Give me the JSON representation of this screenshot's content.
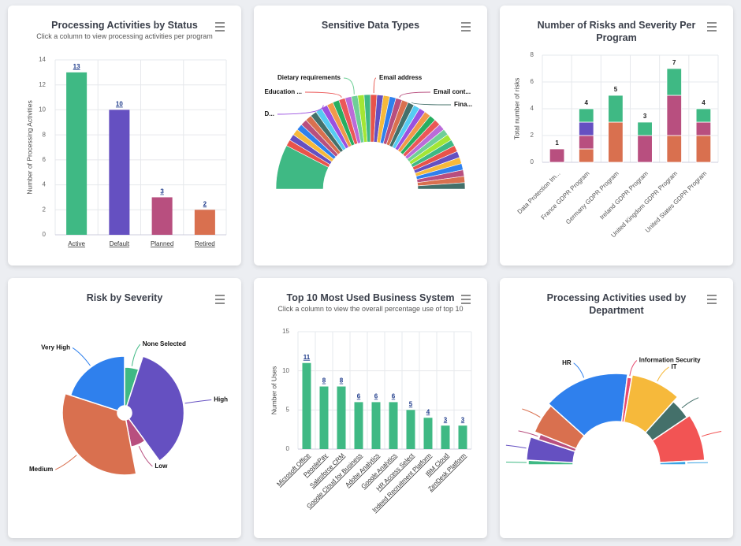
{
  "chart_data": [
    {
      "type": "bar",
      "title": "Processing Activities by Status",
      "subtitle": "Click a column to view processing activities per program",
      "y_label": "Number of Processing Activities",
      "categories": [
        "Active",
        "Default",
        "Planned",
        "Retired"
      ],
      "values": [
        13,
        10,
        3,
        2
      ],
      "colors": [
        "#3fb984",
        "#6550c1",
        "#b84f7f",
        "#d9704f"
      ],
      "data_labels": true,
      "ylim": [
        0,
        14
      ],
      "yticks": [
        0,
        2,
        4,
        6,
        8,
        10,
        12,
        14
      ],
      "grid": true
    },
    {
      "type": "pie",
      "title": "Sensitive Data Types",
      "semicircle": true,
      "categories": [
        null,
        null,
        null,
        null,
        null,
        null,
        null,
        null,
        null,
        "D...",
        null,
        null,
        "Education ...",
        null,
        "Dietary requirements",
        null,
        null,
        "Email address",
        null,
        null,
        null,
        "Email cont...",
        null,
        "Fina...",
        null,
        null,
        null,
        null,
        null,
        null,
        null,
        null,
        null,
        null,
        null,
        null,
        null,
        null,
        null,
        null
      ],
      "values": [
        7,
        1,
        1,
        1,
        1,
        1,
        1,
        1,
        1,
        1,
        1,
        1,
        1,
        1,
        1,
        1,
        1,
        1,
        1,
        1,
        1,
        1,
        1,
        1,
        1,
        1,
        1,
        1,
        1,
        1,
        1,
        1,
        1,
        1,
        1,
        1,
        1,
        1,
        1,
        1
      ],
      "colors": [
        "#3fb984",
        "#e8534a",
        "#6550c1",
        "#f6b93b",
        "#2f80ed",
        "#b84f7f",
        "#d9704f",
        "#44706a",
        "#56ccf2",
        "#9b51e0",
        "#f2994a",
        "#27ae60",
        "#eb5757",
        "#bb6bd9",
        "#6fcf97",
        "#a3e635"
      ]
    },
    {
      "type": "bar",
      "title": "Number of Risks and Severity Per Program",
      "y_label": "Total number of risks",
      "categories": [
        "Data Protection Im...",
        "France GDPR Program",
        "Germany GDPR Program",
        "Ireland GDPR Program",
        "United Kingdom GDPR Program",
        "United States GDPR Program"
      ],
      "series": [
        {
          "color": "#d9704f",
          "values": [
            0,
            1,
            3,
            0,
            2,
            2
          ]
        },
        {
          "color": "#b84f7f",
          "values": [
            1,
            1,
            0,
            2,
            3,
            1
          ]
        },
        {
          "color": "#6550c1",
          "values": [
            0,
            1,
            0,
            0,
            0,
            0
          ]
        },
        {
          "color": "#3fb984",
          "values": [
            0,
            1,
            2,
            1,
            2,
            1
          ]
        }
      ],
      "stack_totals": [
        1,
        4,
        5,
        3,
        7,
        4
      ],
      "ylim": [
        0,
        8
      ],
      "yticks": [
        0,
        2,
        4,
        6,
        8
      ],
      "grid": true
    },
    {
      "type": "pie",
      "title": "Risk by Severity",
      "categories": [
        "None Selected",
        "High",
        "Low",
        "Medium",
        "Very High"
      ],
      "values": [
        5,
        35,
        7,
        33,
        20
      ],
      "z": [
        4,
        6.5,
        2,
        7,
        6
      ],
      "colors": [
        "#3fb984",
        "#6550c1",
        "#b84f7f",
        "#d9704f",
        "#2f80ed"
      ]
    },
    {
      "type": "bar",
      "title": "Top 10 Most Used Business System",
      "subtitle": "Click a column to view the overall percentage use of top 10",
      "y_label": "Number of Uses",
      "categories": [
        "Microsoft Office",
        "PeoplePay",
        "Salesforce CRM",
        "Google Cloud for Business",
        "Adobe Analytics",
        "Google Analytics",
        "HR Access Select",
        "Indeed Recruitment Platform",
        "IBM Cloud",
        "ZenDesk Platform"
      ],
      "values": [
        11,
        8,
        8,
        6,
        6,
        6,
        5,
        4,
        3,
        3
      ],
      "color": "#3fb984",
      "data_labels": true,
      "ylim": [
        0,
        15
      ],
      "yticks": [
        0,
        5,
        10,
        15
      ],
      "grid": true
    },
    {
      "type": "pie",
      "title": "Processing Activities used by Department",
      "semicircle": true,
      "categories": [
        null,
        null,
        null,
        null,
        "HR",
        "Information Security",
        "IT",
        null,
        null,
        null
      ],
      "values": [
        3,
        15,
        4,
        20,
        55,
        3,
        32,
        14,
        31,
        3
      ],
      "z": [
        9,
        9.3,
        8,
        9,
        9.5,
        9,
        9.5,
        8.5,
        9,
        6
      ],
      "colors": [
        "#3fb984",
        "#6550c1",
        "#b84f7f",
        "#d9704f",
        "#2f80ed",
        "#e84a6f",
        "#f6b93b",
        "#44706a",
        "#f25454",
        "#3aa3e3"
      ]
    }
  ]
}
